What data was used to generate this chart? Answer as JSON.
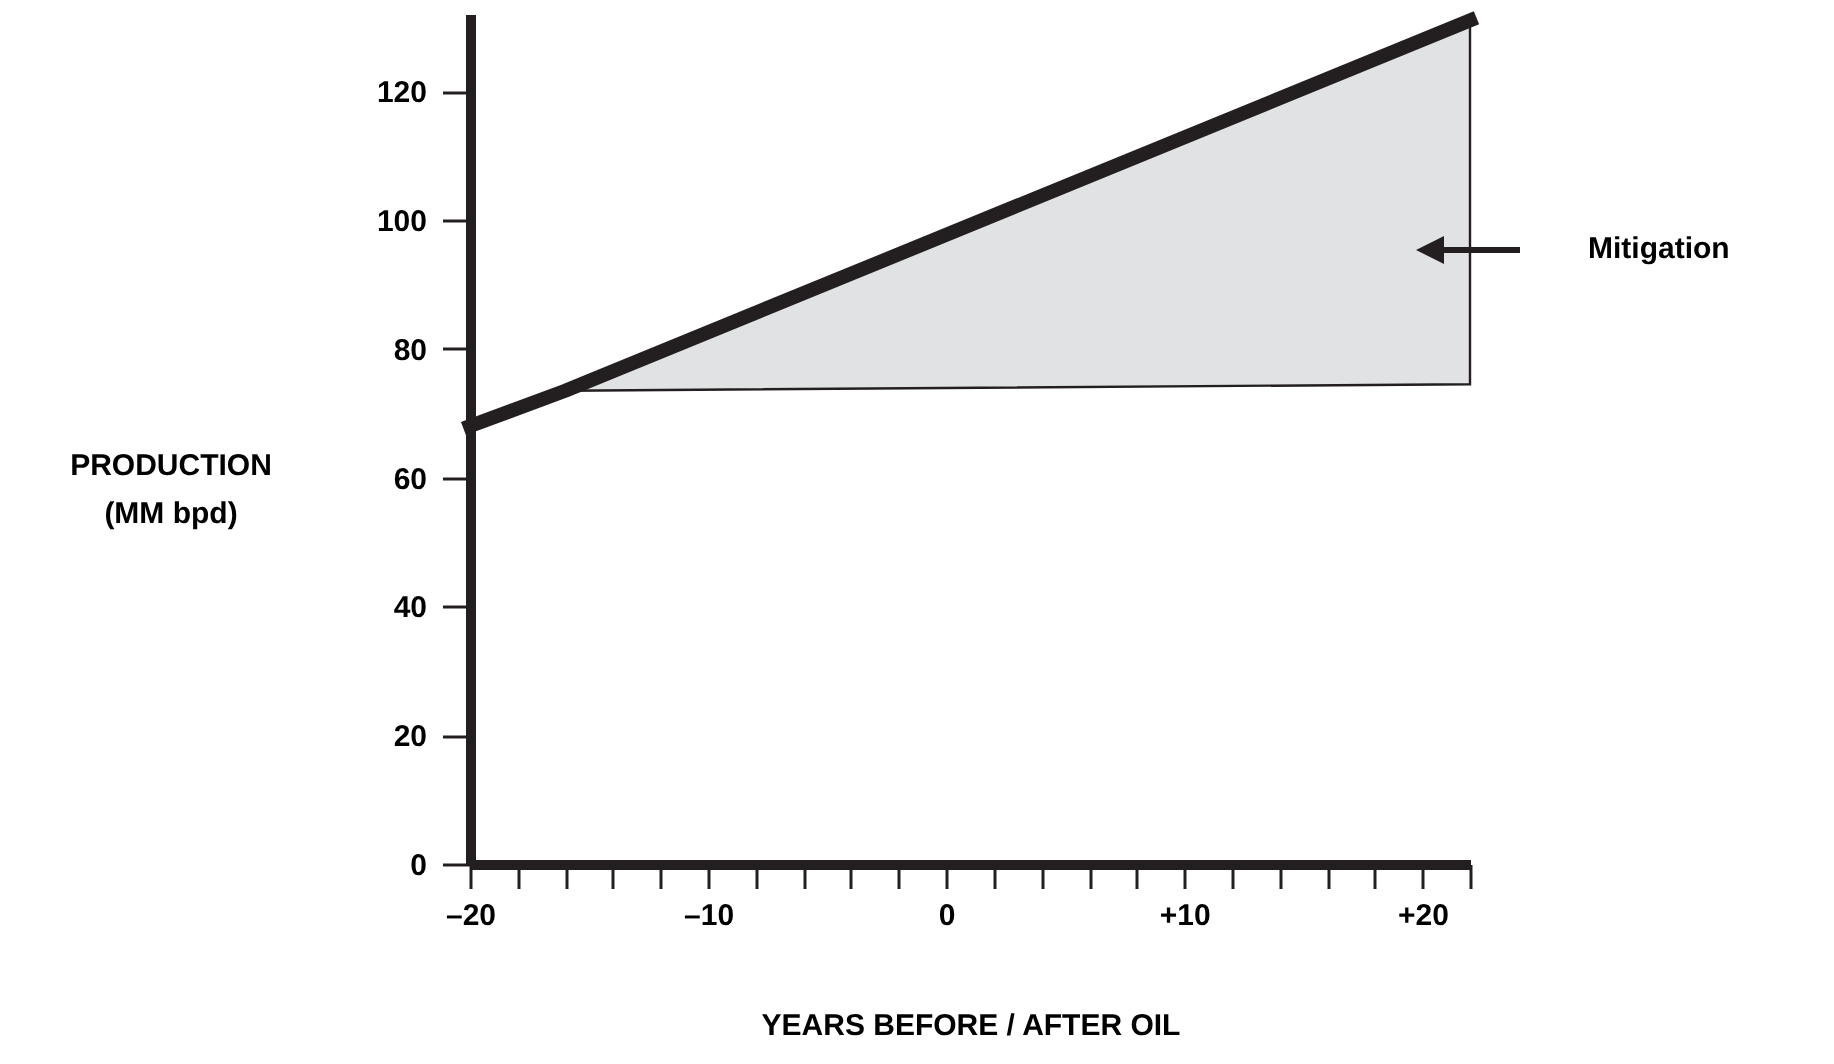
{
  "chart_data": {
    "type": "line",
    "xlabel": "YEARS BEFORE / AFTER OIL",
    "ylabel": "PRODUCTION\n(MM bpd)",
    "x": [
      -20,
      -16,
      22
    ],
    "series": [
      {
        "color": "#231f20",
        "values": [
          68,
          73.5,
          131
        ],
        "lower": [
          null,
          73.5,
          74.5
        ],
        "upper": [
          null,
          73.5,
          131
        ]
      }
    ],
    "xlim": [
      -20,
      22
    ],
    "xticks": [
      {
        "value": -20,
        "label": "–20"
      },
      {
        "value": -18,
        "label": null
      },
      {
        "value": -16,
        "label": null
      },
      {
        "value": -14,
        "label": null
      },
      {
        "value": -12,
        "label": null
      },
      {
        "value": -10,
        "label": "–10"
      },
      {
        "value": -8,
        "label": null
      },
      {
        "value": -6,
        "label": null
      },
      {
        "value": -4,
        "label": null
      },
      {
        "value": -2,
        "label": null
      },
      0,
      {
        "value": 2,
        "label": null
      },
      {
        "value": 4,
        "label": null
      },
      {
        "value": 6,
        "label": null
      },
      {
        "value": 8,
        "label": null
      },
      {
        "value": 10,
        "label": "+10"
      },
      {
        "value": 12,
        "label": null
      },
      {
        "value": 14,
        "label": null
      },
      {
        "value": 16,
        "label": null
      },
      {
        "value": 18,
        "label": null
      },
      {
        "value": 20,
        "label": "+20"
      },
      {
        "value": 22,
        "label": null
      }
    ],
    "ylim": [
      0,
      132
    ],
    "yticks": [
      0,
      20,
      40,
      60,
      80,
      100,
      120
    ],
    "annotations": [
      "Mitigation"
    ],
    "grid": false,
    "marker": "none",
    "line_style": "solid"
  }
}
